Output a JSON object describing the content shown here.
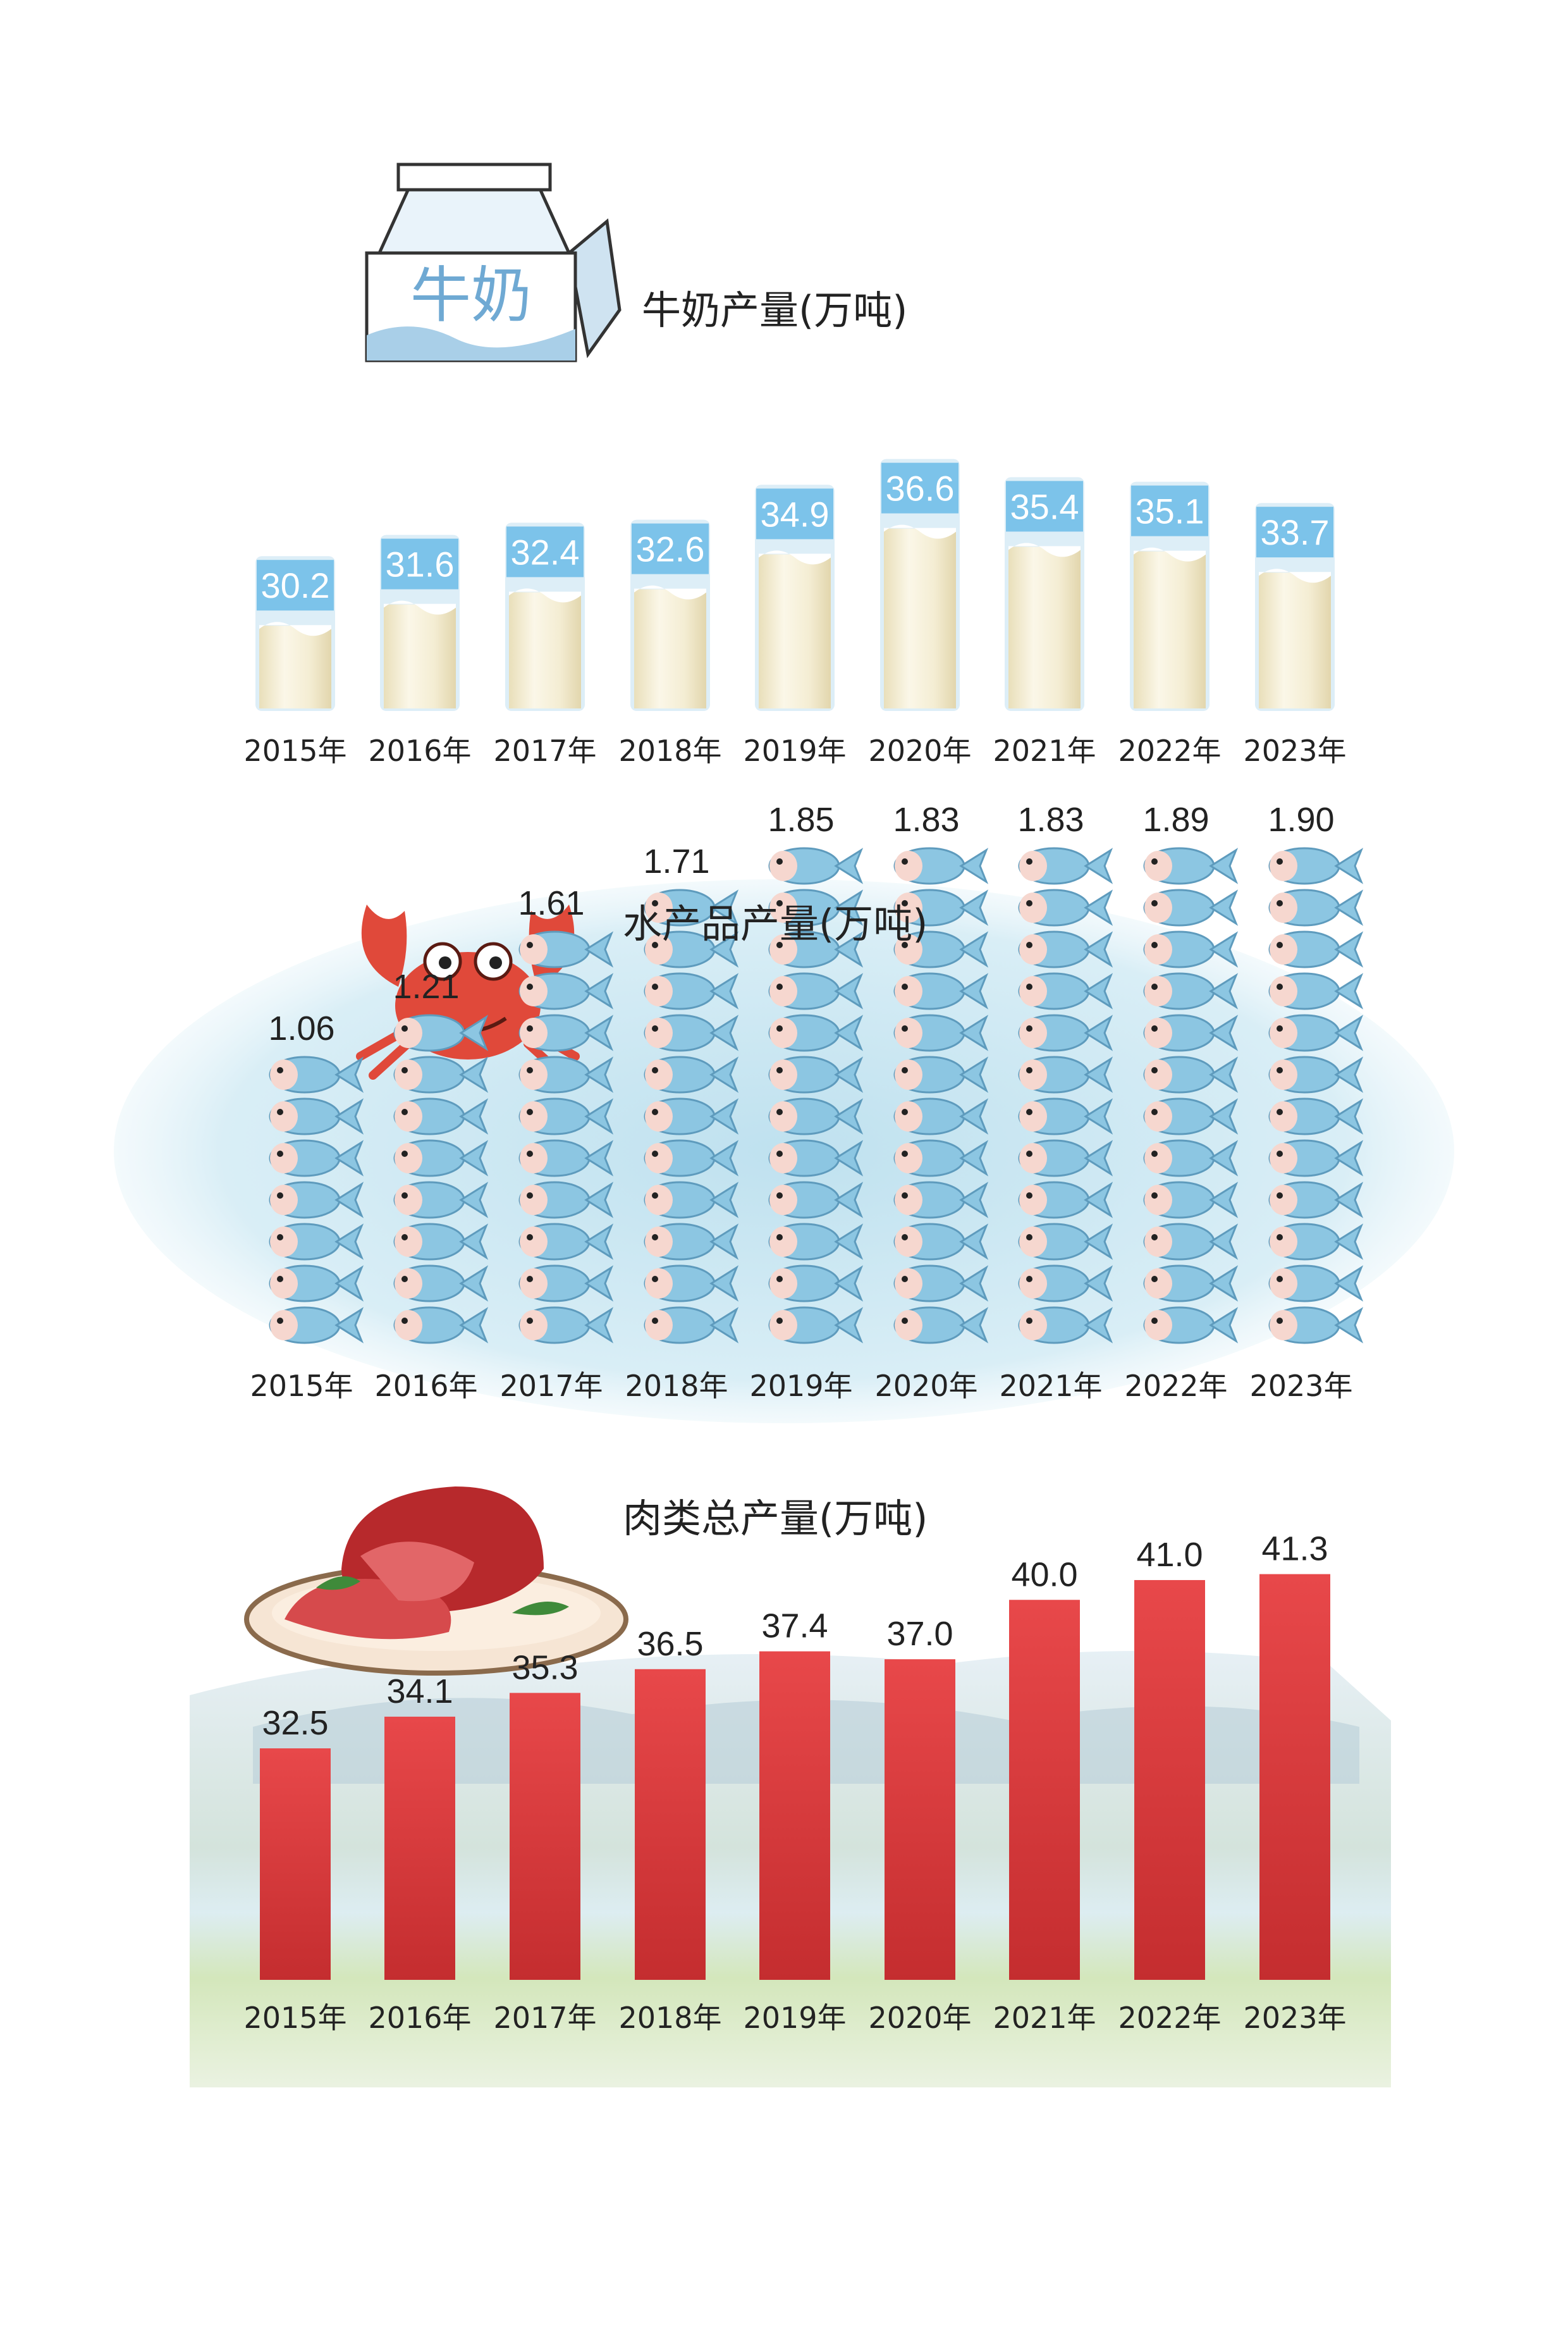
{
  "chart_data": [
    {
      "type": "bar",
      "title": "牛奶产量(万吨)",
      "categories": [
        "2015年",
        "2016年",
        "2017年",
        "2018年",
        "2019年",
        "2020年",
        "2021年",
        "2022年",
        "2023年"
      ],
      "values": [
        30.2,
        31.6,
        32.4,
        32.6,
        34.9,
        36.6,
        35.4,
        35.1,
        33.7
      ],
      "value_labels": [
        "30.2",
        "31.6",
        "32.4",
        "32.6",
        "34.9",
        "36.6",
        "35.4",
        "35.1",
        "33.7"
      ],
      "style": "milk-glass",
      "colors": {
        "label_bg": "#7cc3ea",
        "milk": "#f3ecd2",
        "glass": "#ddeef7"
      }
    },
    {
      "type": "bar",
      "title": "水产品产量(万吨)",
      "categories": [
        "2015年",
        "2016年",
        "2017年",
        "2018年",
        "2019年",
        "2020年",
        "2021年",
        "2022年",
        "2023年"
      ],
      "values": [
        1.06,
        1.21,
        1.61,
        1.71,
        1.85,
        1.83,
        1.83,
        1.89,
        1.9
      ],
      "value_labels": [
        "1.06",
        "1.21",
        "1.61",
        "1.71",
        "1.85",
        "1.83",
        "1.83",
        "1.89",
        "1.90"
      ],
      "style": "fish-pictogram",
      "colors": {
        "fish": "#8cc6e2",
        "fish_head": "#f6d7cf",
        "water": "#d6ecf5"
      }
    },
    {
      "type": "bar",
      "title": "肉类总产量(万吨)",
      "categories": [
        "2015年",
        "2016年",
        "2017年",
        "2018年",
        "2019年",
        "2020年",
        "2021年",
        "2022年",
        "2023年"
      ],
      "values": [
        32.5,
        34.1,
        35.3,
        36.5,
        37.4,
        37.0,
        40.0,
        41.0,
        41.3
      ],
      "value_labels": [
        "32.5",
        "34.1",
        "35.3",
        "36.5",
        "37.4",
        "37.0",
        "40.0",
        "41.0",
        "41.3"
      ],
      "style": "solid",
      "colors": {
        "bar_top": "#e8484a",
        "bar_bottom": "#c42d2f",
        "grass": "#cfe4b4",
        "sky": "#e4eef4"
      }
    }
  ],
  "icons": {
    "milk": "milk-carton-icon",
    "fish": "crab-icon",
    "meat": "meat-plate-icon"
  },
  "carton_text": "牛奶"
}
